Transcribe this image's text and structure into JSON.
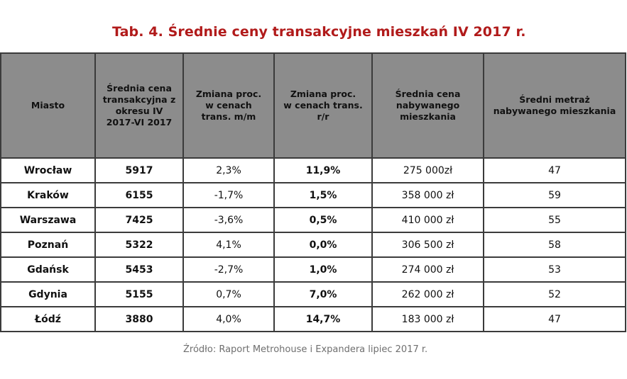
{
  "title": "Tab. 4. Średnie ceny transakcyjne mieszkań IV 2017 r.",
  "table": {
    "headers": [
      "Miasto",
      "Średnia cena\ntransakcyjna z\nokresu IV\n2017-VI 2017",
      "Zmiana proc.\nw cenach\ntrans. m/m",
      "Zmiana proc.\nw cenach trans.\nr/r",
      "Średnia cena\nnabywanego\nmieszkania",
      "Średni metraż\nnabywanego mieszkania"
    ],
    "rows": [
      {
        "city": "Wrocław",
        "avg": "5917",
        "mm": "2,3%",
        "yoy": "11,9%",
        "price": "275 000zł",
        "area": "47"
      },
      {
        "city": "Kraków",
        "avg": "6155",
        "mm": "-1,7%",
        "yoy": "1,5%",
        "price": "358 000 zł",
        "area": "59"
      },
      {
        "city": "Warszawa",
        "avg": "7425",
        "mm": "-3,6%",
        "yoy": "0,5%",
        "price": "410 000 zł",
        "area": "55"
      },
      {
        "city": "Poznań",
        "avg": "5322",
        "mm": "4,1%",
        "yoy": "0,0%",
        "price": "306 500 zł",
        "area": "58"
      },
      {
        "city": "Gdańsk",
        "avg": "5453",
        "mm": "-2,7%",
        "yoy": "1,0%",
        "price": "274 000 zł",
        "area": "53"
      },
      {
        "city": "Gdynia",
        "avg": "5155",
        "mm": "0,7%",
        "yoy": "7,0%",
        "price": "262 000 zł",
        "area": "52"
      },
      {
        "city": "Łódź",
        "avg": "3880",
        "mm": "4,0%",
        "yoy": "14,7%",
        "price": "183 000  zł",
        "area": "47"
      }
    ]
  },
  "source": "Źródło: Raport Metrohouse i Expandera lipiec 2017 r."
}
